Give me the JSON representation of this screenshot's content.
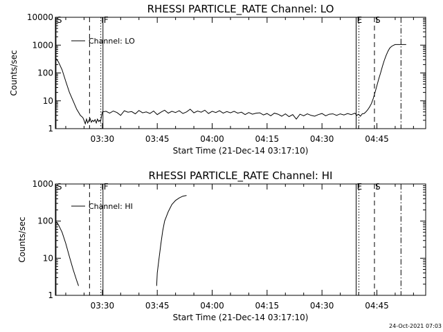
{
  "timestamp": "24-Oct-2021 07:03",
  "chart_data": [
    {
      "type": "line",
      "title": "RHESSI PARTICLE_RATE Channel: LO",
      "xlabel": "Start Time (21-Dec-14 03:17:10)",
      "ylabel": "Counts/sec",
      "y_scale": "log",
      "ylim": [
        1,
        10000
      ],
      "y_ticks": [
        {
          "value": 1,
          "label": "1"
        },
        {
          "value": 10,
          "label": "10"
        },
        {
          "value": 100,
          "label": "100"
        },
        {
          "value": 1000,
          "label": "1000"
        },
        {
          "value": 10000,
          "label": "10000"
        }
      ],
      "xlim": [
        "03:17:10",
        "04:58:20"
      ],
      "x_ticks": [
        "03:30",
        "03:45",
        "04:00",
        "04:15",
        "04:30",
        "04:45"
      ],
      "legend_position": "top-left",
      "series": [
        {
          "name": "Channel: LO",
          "x": [
            "03:17:10",
            "03:18:00",
            "03:19:00",
            "03:20:00",
            "03:21:00",
            "03:22:00",
            "03:23:00",
            "03:24:00",
            "03:24:40",
            "03:25:00",
            "03:25:20",
            "03:25:40",
            "03:26:00",
            "03:26:20",
            "03:26:40",
            "03:27:00",
            "03:27:20",
            "03:27:40",
            "03:28:00",
            "03:28:20",
            "03:28:40",
            "03:29:00",
            "03:29:15",
            "03:29:30",
            "03:30:00",
            "03:31:00",
            "03:32:00",
            "03:33:00",
            "03:34:00",
            "03:35:00",
            "03:36:00",
            "03:37:00",
            "03:38:00",
            "03:39:00",
            "03:40:00",
            "03:41:00",
            "03:42:00",
            "03:43:00",
            "03:44:00",
            "03:45:00",
            "03:46:00",
            "03:47:00",
            "03:48:00",
            "03:49:00",
            "03:50:00",
            "03:51:00",
            "03:52:00",
            "03:53:00",
            "03:54:00",
            "03:55:00",
            "03:56:00",
            "03:57:00",
            "03:58:00",
            "03:59:00",
            "04:00:00",
            "04:01:00",
            "04:02:00",
            "04:03:00",
            "04:04:00",
            "04:05:00",
            "04:06:00",
            "04:07:00",
            "04:08:00",
            "04:09:00",
            "04:10:00",
            "04:11:00",
            "04:12:00",
            "04:13:00",
            "04:14:00",
            "04:15:00",
            "04:16:00",
            "04:17:00",
            "04:18:00",
            "04:19:00",
            "04:20:00",
            "04:21:00",
            "04:22:00",
            "04:23:00",
            "04:24:00",
            "04:25:00",
            "04:26:00",
            "04:27:00",
            "04:28:00",
            "04:29:00",
            "04:30:00",
            "04:31:00",
            "04:32:00",
            "04:33:00",
            "04:34:00",
            "04:35:00",
            "04:36:00",
            "04:37:00",
            "04:38:00",
            "04:39:00",
            "04:39:30",
            "04:40:00",
            "04:40:30",
            "04:41:00",
            "04:41:30",
            "04:42:00",
            "04:42:30",
            "04:43:00",
            "04:43:30",
            "04:44:00",
            "04:44:30",
            "04:45:00",
            "04:45:30",
            "04:46:00",
            "04:46:30",
            "04:47:00",
            "04:47:30",
            "04:48:00",
            "04:48:30",
            "04:49:00",
            "04:49:30",
            "04:50:00",
            "04:51:00",
            "04:52:00",
            "04:52:30",
            "04:53:00"
          ],
          "values": [
            350,
            250,
            130,
            50,
            20,
            10,
            5,
            3,
            2.5,
            2,
            1.5,
            2.2,
            1.6,
            2,
            2.3,
            1.7,
            2,
            1.8,
            2.1,
            1.6,
            2.2,
            1.8,
            2,
            1.8,
            4,
            4.2,
            3.6,
            4.3,
            3.8,
            3,
            4.4,
            3.9,
            4.1,
            3.4,
            4.5,
            3.7,
            4,
            3.5,
            4.3,
            3.2,
            3.9,
            4.6,
            3.6,
            4.2,
            3.8,
            4.4,
            3.5,
            4,
            5,
            3.7,
            4.3,
            3.9,
            4.6,
            3.5,
            4.2,
            3.8,
            4.4,
            3.6,
            4.1,
            3.7,
            4.2,
            3.6,
            3.9,
            3.2,
            3.8,
            3.3,
            3.6,
            3.7,
            3.1,
            3.5,
            2.9,
            3.6,
            3.3,
            2.8,
            3.4,
            2.7,
            3.2,
            2.2,
            3.3,
            2.9,
            3.4,
            3,
            2.8,
            3.2,
            3.5,
            2.9,
            3.3,
            3.4,
            3,
            3.4,
            3.1,
            3.5,
            3.2,
            3.6,
            3,
            3.3,
            2.8,
            3.4,
            3.5,
            4,
            4.8,
            6,
            8,
            12,
            20,
            35,
            60,
            100,
            170,
            280,
            420,
            600,
            780,
            900,
            980,
            1050,
            1050,
            1050,
            1050,
            1050
          ]
        }
      ],
      "markers": [
        {
          "label": "S",
          "time": "03:17:20",
          "style": "solid"
        },
        {
          "label": "",
          "time": "03:26:30",
          "style": "dashed"
        },
        {
          "label": "",
          "time": "03:29:35",
          "style": "dotted"
        },
        {
          "label": "F",
          "time": "03:30:10",
          "style": "solid"
        },
        {
          "label": "E",
          "time": "04:39:20",
          "style": "solid"
        },
        {
          "label": "",
          "time": "04:40:05",
          "style": "dotted"
        },
        {
          "label": "S",
          "time": "04:44:20",
          "style": "dashed"
        },
        {
          "label": "",
          "time": "04:51:35",
          "style": "dashdot"
        }
      ]
    },
    {
      "type": "line",
      "title": "RHESSI PARTICLE_RATE Channel: HI",
      "xlabel": "Start Time (21-Dec-14 03:17:10)",
      "ylabel": "Counts/sec",
      "y_scale": "log",
      "ylim": [
        1,
        1000
      ],
      "y_ticks": [
        {
          "value": 1,
          "label": "1"
        },
        {
          "value": 10,
          "label": "10"
        },
        {
          "value": 100,
          "label": "100"
        },
        {
          "value": 1000,
          "label": "1000"
        }
      ],
      "xlim": [
        "03:17:10",
        "04:58:20"
      ],
      "x_ticks": [
        "03:30",
        "03:45",
        "04:00",
        "04:15",
        "04:30",
        "04:45"
      ],
      "legend_position": "top-left",
      "series": [
        {
          "name": "Channel: HI",
          "x": [
            "03:17:10",
            "03:18:00",
            "03:19:00",
            "03:20:00",
            "03:21:00",
            "03:22:00",
            "03:23:00",
            "03:23:30",
            "03:24:00",
            "03:44:40",
            "03:44:50",
            "03:45:00",
            "03:45:30",
            "03:46:00",
            "03:46:30",
            "03:47:00",
            "03:48:00",
            "03:49:00",
            "03:50:00",
            "03:51:00",
            "03:52:00",
            "03:53:00"
          ],
          "values": [
            100,
            80,
            50,
            25,
            11,
            5,
            2.5,
            1.8,
            null,
            null,
            1.8,
            4,
            10,
            25,
            55,
            100,
            180,
            280,
            360,
            420,
            470,
            490
          ]
        }
      ],
      "markers": [
        {
          "label": "S",
          "time": "03:17:20",
          "style": "solid"
        },
        {
          "label": "",
          "time": "03:26:30",
          "style": "dashed"
        },
        {
          "label": "",
          "time": "03:29:35",
          "style": "dotted"
        },
        {
          "label": "F",
          "time": "03:30:10",
          "style": "solid"
        },
        {
          "label": "E",
          "time": "04:39:20",
          "style": "solid"
        },
        {
          "label": "",
          "time": "04:40:05",
          "style": "dotted"
        },
        {
          "label": "S",
          "time": "04:44:20",
          "style": "dashed"
        },
        {
          "label": "",
          "time": "04:51:35",
          "style": "dashdot"
        }
      ]
    }
  ]
}
